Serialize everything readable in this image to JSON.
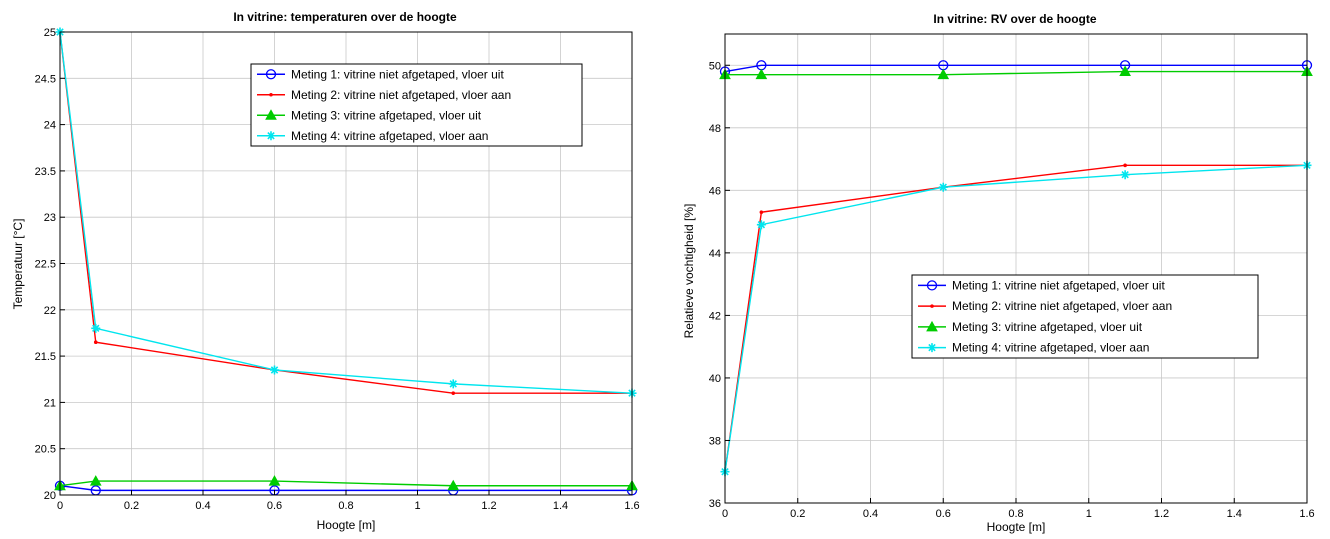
{
  "chart_data": [
    {
      "type": "line",
      "title": "In vitrine: temperaturen over de hoogte",
      "xlabel": "Hoogte  [m]",
      "ylabel": "Temperatuur  [°C]",
      "xlim": [
        0,
        1.6
      ],
      "ylim": [
        20,
        25
      ],
      "xticks": [
        "0",
        "0.2",
        "0.4",
        "0.6",
        "0.8",
        "1",
        "1.2",
        "1.4",
        "1.6"
      ],
      "yticks": [
        "20",
        "20.5",
        "21",
        "21.5",
        "22",
        "22.5",
        "23",
        "23.5",
        "24",
        "24.5",
        "25"
      ],
      "grid": true,
      "legend_position": "top-right",
      "x": [
        0,
        0.1,
        0.6,
        1.1,
        1.6
      ],
      "series": [
        {
          "name": "Meting 1: vitrine niet afgetaped, vloer uit",
          "color": "#0000ff",
          "marker": "circle",
          "values": [
            20.1,
            20.05,
            20.05,
            20.05,
            20.05
          ]
        },
        {
          "name": "Meting 2: vitrine niet afgetaped, vloer aan",
          "color": "#ff0000",
          "marker": "dot",
          "values": [
            25.0,
            21.65,
            21.35,
            21.1,
            21.1
          ]
        },
        {
          "name": "Meting 3: vitrine afgetaped, vloer uit",
          "color": "#00cc00",
          "marker": "triangle",
          "values": [
            20.1,
            20.15,
            20.15,
            20.1,
            20.1
          ]
        },
        {
          "name": "Meting 4: vitrine afgetaped, vloer aan",
          "color": "#00e5ee",
          "marker": "star",
          "values": [
            25.0,
            21.8,
            21.35,
            21.2,
            21.1
          ]
        }
      ]
    },
    {
      "type": "line",
      "title": "In vitrine: RV over de hoogte",
      "xlabel": "Hoogte  [m]",
      "ylabel": "Relatieve vochtigheid  [%]",
      "xlim": [
        0,
        1.6
      ],
      "ylim": [
        36,
        51
      ],
      "xticks": [
        "0",
        "0.2",
        "0.4",
        "0.6",
        "0.8",
        "1",
        "1.2",
        "1.4",
        "1.6"
      ],
      "yticks": [
        "36",
        "38",
        "40",
        "42",
        "44",
        "46",
        "48",
        "50"
      ],
      "grid": true,
      "legend_position": "center-right",
      "x": [
        0,
        0.1,
        0.6,
        1.1,
        1.6
      ],
      "series": [
        {
          "name": "Meting 1: vitrine niet afgetaped, vloer uit",
          "color": "#0000ff",
          "marker": "circle",
          "values": [
            49.8,
            50.0,
            50.0,
            50.0,
            50.0
          ]
        },
        {
          "name": "Meting 2: vitrine niet afgetaped, vloer aan",
          "color": "#ff0000",
          "marker": "dot",
          "values": [
            37.0,
            45.3,
            46.1,
            46.8,
            46.8
          ]
        },
        {
          "name": "Meting 3: vitrine afgetaped, vloer uit",
          "color": "#00cc00",
          "marker": "triangle",
          "values": [
            49.7,
            49.7,
            49.7,
            49.8,
            49.8
          ]
        },
        {
          "name": "Meting 4: vitrine afgetaped, vloer aan",
          "color": "#00e5ee",
          "marker": "star",
          "values": [
            37.0,
            44.9,
            46.1,
            46.5,
            46.8
          ]
        }
      ]
    }
  ]
}
